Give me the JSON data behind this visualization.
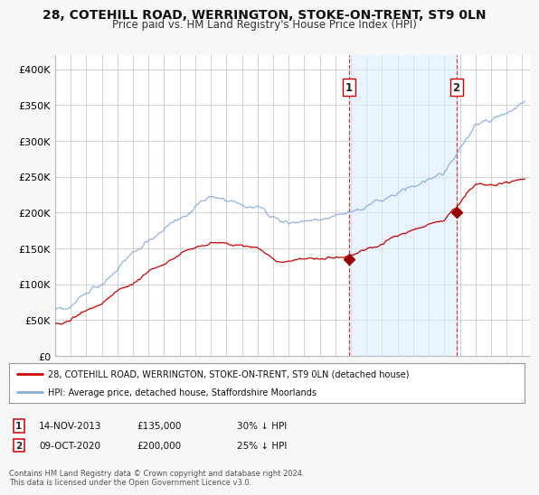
{
  "title_line1": "28, COTEHILL ROAD, WERRINGTON, STOKE-ON-TRENT, ST9 0LN",
  "title_line2": "Price paid vs. HM Land Registry's House Price Index (HPI)",
  "xlim_start": 1995.0,
  "xlim_end": 2025.5,
  "ylim_min": 0,
  "ylim_max": 420000,
  "yticks": [
    0,
    50000,
    100000,
    150000,
    200000,
    250000,
    300000,
    350000,
    400000
  ],
  "ytick_labels": [
    "£0",
    "£50K",
    "£100K",
    "£150K",
    "£200K",
    "£250K",
    "£300K",
    "£350K",
    "£400K"
  ],
  "xticks": [
    1995,
    1996,
    1997,
    1998,
    1999,
    2000,
    2001,
    2002,
    2003,
    2004,
    2005,
    2006,
    2007,
    2008,
    2009,
    2010,
    2011,
    2012,
    2013,
    2014,
    2015,
    2016,
    2017,
    2018,
    2019,
    2020,
    2021,
    2022,
    2023,
    2024,
    2025
  ],
  "background_color": "#f7f7f7",
  "plot_bg_color": "#ffffff",
  "grid_color": "#cccccc",
  "red_color": "#cc0000",
  "blue_color": "#88aadd",
  "marker1_x": 2013.87,
  "marker1_y": 135000,
  "marker2_x": 2020.77,
  "marker2_y": 200000,
  "vline1_x": 2013.87,
  "vline2_x": 2020.77,
  "legend_red": "28, COTEHILL ROAD, WERRINGTON, STOKE-ON-TRENT, ST9 0LN (detached house)",
  "legend_blue": "HPI: Average price, detached house, Staffordshire Moorlands",
  "box1_date": "14-NOV-2013",
  "box1_price": "£135,000",
  "box1_hpi": "30% ↓ HPI",
  "box2_date": "09-OCT-2020",
  "box2_price": "£200,000",
  "box2_hpi": "25% ↓ HPI",
  "footer_line1": "Contains HM Land Registry data © Crown copyright and database right 2024.",
  "footer_line2": "This data is licensed under the Open Government Licence v3.0."
}
